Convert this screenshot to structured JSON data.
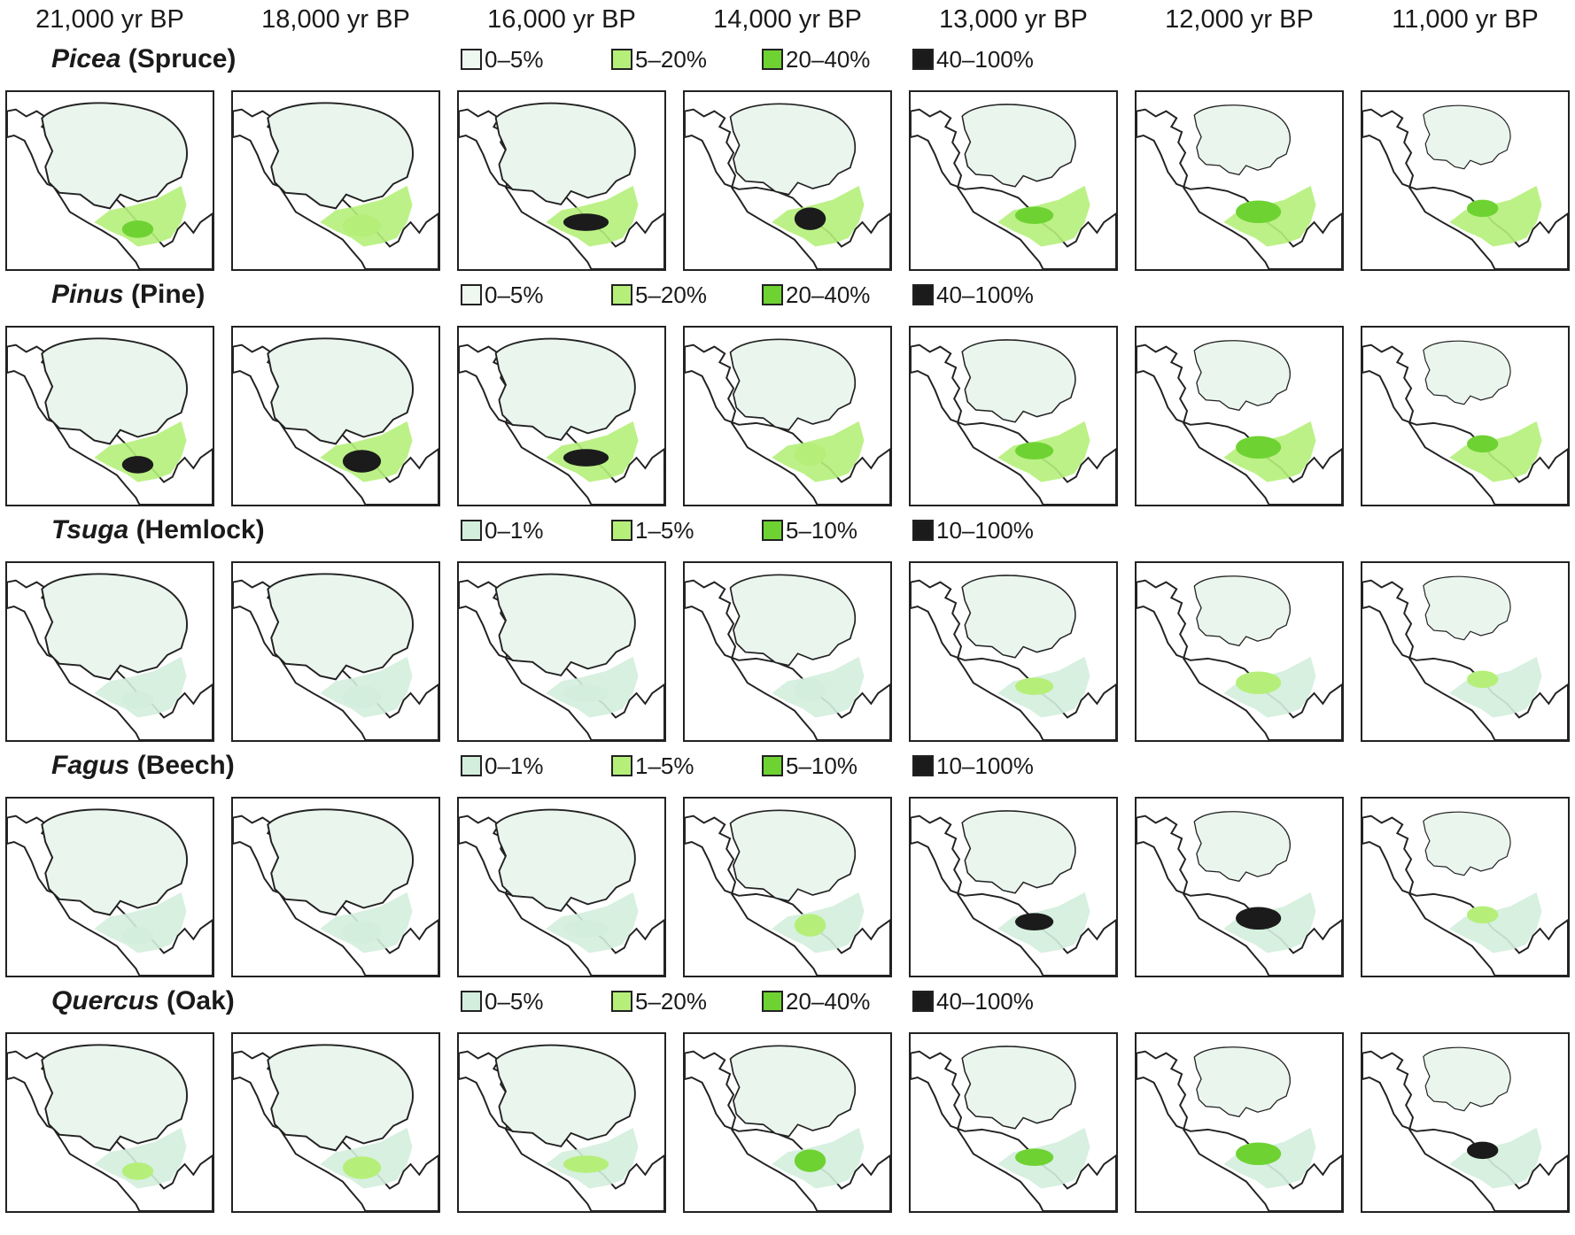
{
  "columns": [
    "21,000 yr BP",
    "18,000 yr BP",
    "16,000 yr BP",
    "14,000 yr BP",
    "13,000 yr BP",
    "12,000 yr BP",
    "11,000 yr BP"
  ],
  "colors": {
    "ice": "#eaf5ee",
    "class1": "#d3eedd",
    "class2": "#b5ef7a",
    "class3": "#6fd233",
    "class4": "#1b1b1b",
    "coast": "#222222"
  },
  "rows": [
    {
      "genus": "Picea",
      "common": " (Spruce)",
      "legend": [
        "0–5%",
        "5–20%",
        "20–40%",
        "40–100%"
      ],
      "legend_colors": [
        "#eef7f0",
        "#b5ef7a",
        "#6fd233",
        "#1b1b1b"
      ]
    },
    {
      "genus": "Pinus",
      "common": " (Pine)",
      "legend": [
        "0–5%",
        "5–20%",
        "20–40%",
        "40–100%"
      ],
      "legend_colors": [
        "#eef7f0",
        "#b5ef7a",
        "#6fd233",
        "#1b1b1b"
      ]
    },
    {
      "genus": "Tsuga",
      "common": " (Hemlock)",
      "legend": [
        "0–1%",
        "1–5%",
        "5–10%",
        "10–100%"
      ],
      "legend_colors": [
        "#d3eedd",
        "#b5ef7a",
        "#6fd233",
        "#1b1b1b"
      ]
    },
    {
      "genus": "Fagus",
      "common": " (Beech)",
      "legend": [
        "0–1%",
        "1–5%",
        "5–10%",
        "10–100%"
      ],
      "legend_colors": [
        "#d3eedd",
        "#b5ef7a",
        "#6fd233",
        "#1b1b1b"
      ]
    },
    {
      "genus": "Quercus",
      "common": " (Oak)",
      "legend": [
        "0–5%",
        "5–20%",
        "20–40%",
        "40–100%"
      ],
      "legend_colors": [
        "#d3eedd",
        "#b5ef7a",
        "#6fd233",
        "#1b1b1b"
      ]
    }
  ]
}
